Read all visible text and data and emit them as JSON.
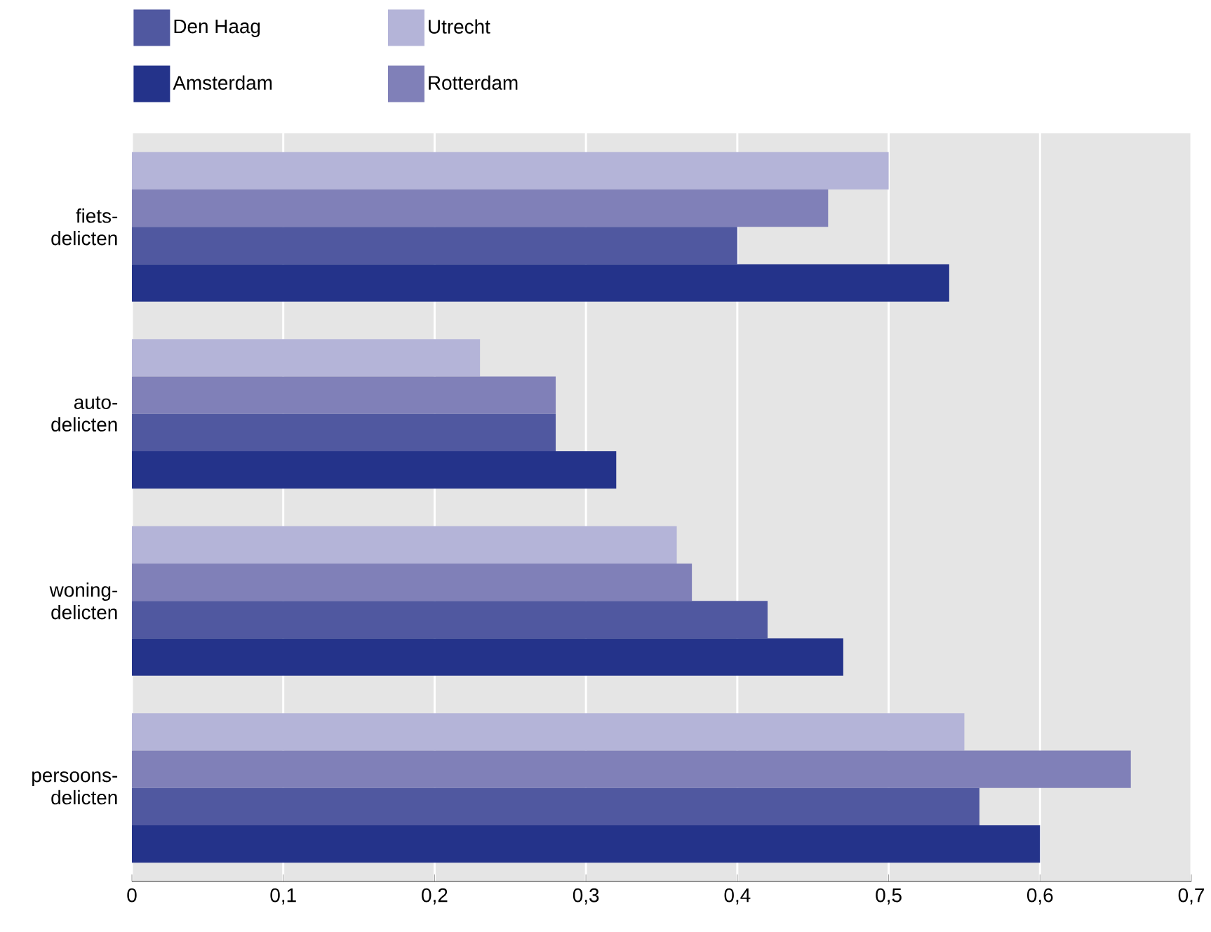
{
  "chart_data": {
    "type": "bar",
    "orientation": "horizontal",
    "categories": [
      "fiets- delicten",
      "auto- delicten",
      "woning- delicten",
      "persoons- delicten"
    ],
    "series": [
      {
        "name": "Utrecht",
        "color": "#b4b4d8",
        "values": [
          0.5,
          0.23,
          0.36,
          0.55
        ]
      },
      {
        "name": "Rotterdam",
        "color": "#8080b8",
        "values": [
          0.46,
          0.28,
          0.37,
          0.66
        ]
      },
      {
        "name": "Den Haag",
        "color": "#5058a0",
        "values": [
          0.4,
          0.28,
          0.42,
          0.56
        ]
      },
      {
        "name": "Amsterdam",
        "color": "#24338a",
        "values": [
          0.54,
          0.32,
          0.47,
          0.6
        ]
      }
    ],
    "xlim": [
      0,
      0.7
    ],
    "xticks": [
      0,
      {
        "value": 0.1,
        "label": "0,1"
      },
      {
        "value": 0.2,
        "label": "0,2"
      },
      {
        "value": 0.3,
        "label": "0,3"
      },
      {
        "value": 0.4,
        "label": "0,4"
      },
      {
        "value": 0.5,
        "label": "0,5"
      },
      {
        "value": 0.6,
        "label": "0,6"
      },
      {
        "value": 0.7,
        "label": "0,7"
      }
    ],
    "grid": "x",
    "legend": "top left"
  }
}
